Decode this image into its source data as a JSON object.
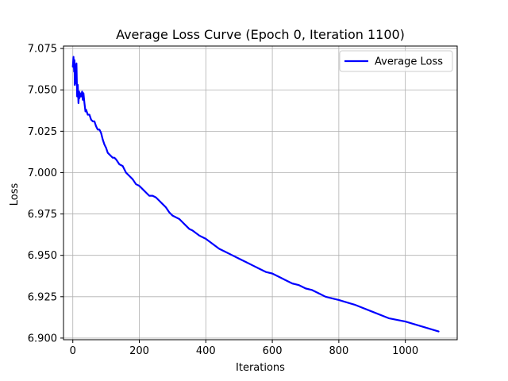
{
  "chart_data": {
    "type": "line",
    "title": "Average Loss Curve (Epoch 0, Iteration 1100)",
    "xlabel": "Iterations",
    "ylabel": "Loss",
    "xlim": [
      -28,
      1156
    ],
    "ylim": [
      6.899,
      7.0765
    ],
    "xticks": [
      0,
      200,
      400,
      600,
      800,
      1000
    ],
    "yticks": [
      6.9,
      6.925,
      6.95,
      6.975,
      7.0,
      7.025,
      7.05,
      7.075
    ],
    "ytick_labels": [
      "6.900",
      "6.925",
      "6.950",
      "6.975",
      "7.000",
      "7.025",
      "7.050",
      "7.075"
    ],
    "grid": true,
    "legend_position": "top-right",
    "series": [
      {
        "name": "Average Loss",
        "color": "#0000ff",
        "x": [
          0,
          2,
          4,
          5,
          6,
          8,
          10,
          11,
          13,
          15,
          17,
          19,
          20,
          22,
          25,
          28,
          30,
          32,
          35,
          38,
          40,
          45,
          50,
          55,
          60,
          65,
          70,
          75,
          80,
          85,
          90,
          95,
          100,
          105,
          110,
          115,
          120,
          125,
          130,
          140,
          150,
          160,
          170,
          180,
          190,
          200,
          210,
          220,
          230,
          240,
          250,
          260,
          270,
          280,
          290,
          300,
          310,
          320,
          330,
          340,
          350,
          360,
          380,
          400,
          420,
          440,
          460,
          480,
          500,
          520,
          540,
          560,
          580,
          600,
          620,
          640,
          660,
          680,
          700,
          720,
          740,
          760,
          780,
          800,
          850,
          900,
          950,
          1000,
          1050,
          1100
        ],
        "values": [
          7.064,
          7.07,
          7.061,
          7.068,
          7.053,
          7.065,
          7.054,
          7.066,
          7.046,
          7.053,
          7.042,
          7.049,
          7.045,
          7.048,
          7.046,
          7.049,
          7.044,
          7.048,
          7.042,
          7.037,
          7.038,
          7.035,
          7.035,
          7.032,
          7.031,
          7.031,
          7.028,
          7.026,
          7.026,
          7.024,
          7.02,
          7.017,
          7.015,
          7.012,
          7.011,
          7.01,
          7.009,
          7.009,
          7.008,
          7.005,
          7.004,
          7.0,
          6.998,
          6.996,
          6.993,
          6.992,
          6.99,
          6.988,
          6.986,
          6.986,
          6.985,
          6.983,
          6.981,
          6.979,
          6.976,
          6.974,
          6.973,
          6.972,
          6.97,
          6.968,
          6.966,
          6.965,
          6.962,
          6.96,
          6.957,
          6.954,
          6.952,
          6.95,
          6.948,
          6.946,
          6.944,
          6.942,
          6.94,
          6.939,
          6.937,
          6.935,
          6.933,
          6.932,
          6.93,
          6.929,
          6.927,
          6.925,
          6.924,
          6.923,
          6.92,
          6.916,
          6.912,
          6.91,
          6.907,
          6.904
        ]
      }
    ]
  }
}
